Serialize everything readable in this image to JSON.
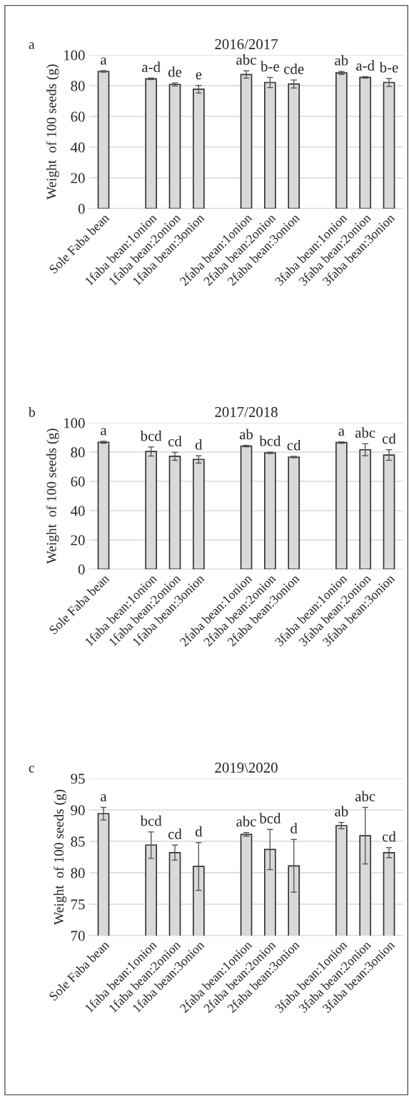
{
  "chart_data": [
    {
      "type": "bar",
      "title": "2016/2017",
      "ylabel": "Weight  of 100 seeds (g)",
      "annotations": [
        "a"
      ],
      "categories": [
        "Sole Faba bean",
        null,
        "1faba bean:1onion",
        "1faba bean:2onion",
        "1faba bean:3onion",
        null,
        "2faba bean:1onion",
        "2faba bean:2onion",
        "2faba bean:3onion",
        null,
        "3faba bean:1onion",
        "3faba bean:2onion",
        "3faba bean:3onion"
      ],
      "values": [
        89.3,
        null,
        84.5,
        80.8,
        77.7,
        null,
        87.3,
        82.1,
        81.1,
        null,
        88.3,
        85.4,
        82.1
      ],
      "errors": [
        0.5,
        null,
        0.5,
        1,
        2.5,
        null,
        2.4,
        3.3,
        2.6,
        null,
        1,
        0.5,
        2.6
      ],
      "value_labels": [
        "a",
        null,
        "a-d",
        "de",
        "e",
        null,
        "abc",
        "b-e",
        "cde",
        null,
        "ab",
        "a-d",
        "b-e"
      ],
      "color": "#d9d9d9",
      "ylim": [
        0,
        100
      ],
      "yticks": [
        0,
        20,
        40,
        60,
        80,
        100
      ],
      "grid": "y"
    },
    {
      "type": "bar",
      "title": "2017/2018",
      "ylabel": "Weight  of 100 seeds (g)",
      "annotations": [
        "b"
      ],
      "categories": [
        "Sole Faba bean",
        null,
        "1faba bean:1onion",
        "1faba bean:2onion",
        "1faba bean:3onion",
        null,
        "2faba bean:1onion",
        "2faba bean:2onion",
        "2faba bean:3onion",
        null,
        "3faba bean:1onion",
        "3faba bean:2onion",
        "3faba bean:3onion"
      ],
      "values": [
        86.7,
        null,
        80.4,
        77.1,
        75.0,
        null,
        84.1,
        79.5,
        76.6,
        null,
        86.5,
        81.6,
        78.0
      ],
      "errors": [
        0.7,
        null,
        3.1,
        2.7,
        2.5,
        null,
        0.5,
        0.5,
        0.5,
        null,
        0.5,
        4.1,
        3.6
      ],
      "value_labels": [
        "a",
        null,
        "bcd",
        "cd",
        "d",
        null,
        "ab",
        "bcd",
        "cd",
        null,
        "a",
        "abc",
        "cd"
      ],
      "color": "#d9d9d9",
      "ylim": [
        0,
        100
      ],
      "yticks": [
        0,
        20,
        40,
        60,
        80,
        100
      ],
      "grid": "y"
    },
    {
      "type": "bar",
      "title": "2019\\2020",
      "ylabel": "Weight  of 100 seeds (g)",
      "annotations": [
        "c"
      ],
      "categories": [
        "Sole Faba bean",
        null,
        "1faba bean:1onion",
        "1faba bean:2onion",
        "1faba bean:3onion",
        null,
        "2faba bean:1onion",
        "2faba bean:2onion",
        "2faba bean:3onion",
        null,
        "3faba bean:1onion",
        "3faba bean:2onion",
        "3faba bean:3onion"
      ],
      "values": [
        89.4,
        null,
        84.4,
        83.2,
        81.0,
        null,
        86.1,
        83.7,
        81.1,
        null,
        87.5,
        85.9,
        83.2
      ],
      "errors": [
        1.0,
        null,
        2.1,
        1.2,
        3.8,
        null,
        0.3,
        3.2,
        4.2,
        null,
        0.5,
        4.5,
        0.8
      ],
      "value_labels": [
        "a",
        null,
        "bcd",
        "cd",
        "d",
        null,
        "abc",
        "bcd",
        "d",
        null,
        "ab",
        "abc",
        "cd"
      ],
      "color": "#d9d9d9",
      "ylim": [
        70,
        95
      ],
      "yticks": [
        70,
        75,
        80,
        85,
        90,
        95
      ],
      "grid": "y"
    }
  ]
}
